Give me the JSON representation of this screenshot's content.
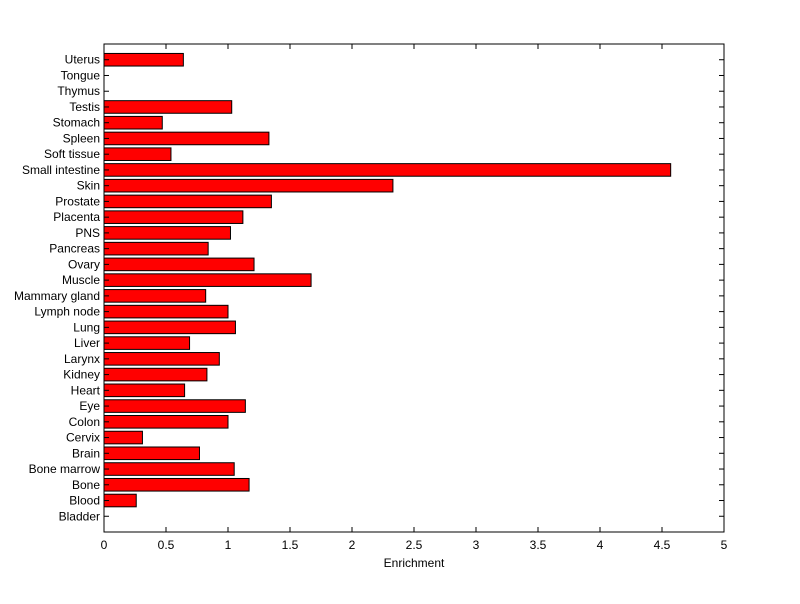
{
  "chart_data": {
    "type": "bar",
    "orientation": "horizontal",
    "title": "",
    "xlabel": "Enrichment",
    "ylabel": "",
    "xlim": [
      0,
      5
    ],
    "x_ticks": [
      "0",
      "0.5",
      "1",
      "1.5",
      "2",
      "2.5",
      "3",
      "3.5",
      "4",
      "4.5",
      "5"
    ],
    "grid": false,
    "bar_color": "#ff0000",
    "categories": [
      "Uterus",
      "Tongue",
      "Thymus",
      "Testis",
      "Stomach",
      "Spleen",
      "Soft tissue",
      "Small intestine",
      "Skin",
      "Prostate",
      "Placenta",
      "PNS",
      "Pancreas",
      "Ovary",
      "Muscle",
      "Mammary gland",
      "Lymph node",
      "Lung",
      "Liver",
      "Larynx",
      "Kidney",
      "Heart",
      "Eye",
      "Colon",
      "Cervix",
      "Brain",
      "Bone marrow",
      "Bone",
      "Blood",
      "Bladder"
    ],
    "values": [
      0.64,
      0,
      0,
      1.03,
      0.47,
      1.33,
      0.54,
      4.57,
      2.33,
      1.35,
      1.12,
      1.02,
      0.84,
      1.21,
      1.67,
      0.82,
      1.0,
      1.06,
      0.69,
      0.93,
      0.83,
      0.65,
      1.14,
      1.0,
      0.31,
      0.77,
      1.05,
      1.17,
      0.26,
      0
    ]
  }
}
